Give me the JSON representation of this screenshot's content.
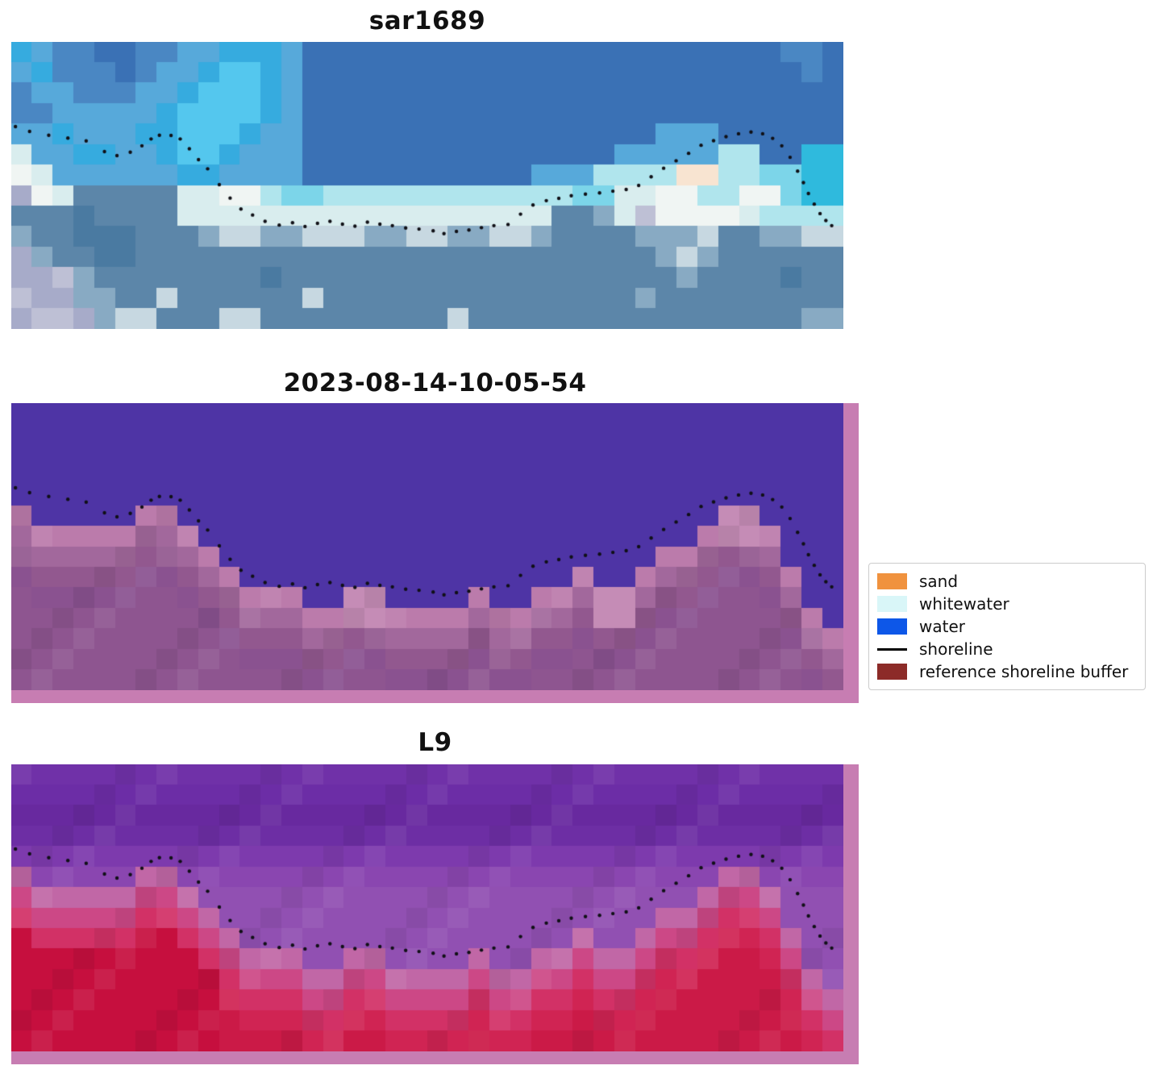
{
  "legend": {
    "items": [
      {
        "label": "sand",
        "color": "#f0923e",
        "type": "patch"
      },
      {
        "label": "whitewater",
        "color": "#d9f6f8",
        "type": "patch"
      },
      {
        "label": "water",
        "color": "#0d57e8",
        "type": "patch"
      },
      {
        "label": "shoreline",
        "color": "#000000",
        "type": "line"
      },
      {
        "label": "reference shoreline buffer",
        "color": "#8c2b28",
        "type": "patch"
      }
    ]
  },
  "chart_data": {
    "type": "heatmap",
    "description": "Three stacked satellite image panels (SAR scene, classified scene with reference shoreline buffer overlay, Landsat 9 scene) sharing one detected dotted shoreline; legend at right",
    "grid_cols": 40,
    "grid_rows": 14,
    "shoreline_color": "#101016",
    "shoreline_dots": [
      [
        0.005,
        0.295
      ],
      [
        0.022,
        0.312
      ],
      [
        0.045,
        0.325
      ],
      [
        0.068,
        0.335
      ],
      [
        0.09,
        0.345
      ],
      [
        0.112,
        0.382
      ],
      [
        0.127,
        0.396
      ],
      [
        0.143,
        0.384
      ],
      [
        0.157,
        0.362
      ],
      [
        0.168,
        0.338
      ],
      [
        0.178,
        0.325
      ],
      [
        0.192,
        0.326
      ],
      [
        0.203,
        0.338
      ],
      [
        0.214,
        0.372
      ],
      [
        0.225,
        0.41
      ],
      [
        0.236,
        0.442
      ],
      [
        0.25,
        0.497
      ],
      [
        0.263,
        0.544
      ],
      [
        0.276,
        0.582
      ],
      [
        0.29,
        0.603
      ],
      [
        0.305,
        0.625
      ],
      [
        0.322,
        0.638
      ],
      [
        0.338,
        0.63
      ],
      [
        0.353,
        0.643
      ],
      [
        0.368,
        0.632
      ],
      [
        0.383,
        0.625
      ],
      [
        0.398,
        0.635
      ],
      [
        0.413,
        0.642
      ],
      [
        0.428,
        0.628
      ],
      [
        0.443,
        0.635
      ],
      [
        0.458,
        0.64
      ],
      [
        0.474,
        0.648
      ],
      [
        0.49,
        0.652
      ],
      [
        0.507,
        0.658
      ],
      [
        0.52,
        0.668
      ],
      [
        0.535,
        0.66
      ],
      [
        0.55,
        0.655
      ],
      [
        0.565,
        0.647
      ],
      [
        0.58,
        0.64
      ],
      [
        0.597,
        0.636
      ],
      [
        0.612,
        0.6
      ],
      [
        0.627,
        0.568
      ],
      [
        0.643,
        0.553
      ],
      [
        0.658,
        0.545
      ],
      [
        0.673,
        0.536
      ],
      [
        0.69,
        0.53
      ],
      [
        0.707,
        0.526
      ],
      [
        0.723,
        0.52
      ],
      [
        0.739,
        0.514
      ],
      [
        0.754,
        0.5
      ],
      [
        0.769,
        0.47
      ],
      [
        0.784,
        0.44
      ],
      [
        0.799,
        0.414
      ],
      [
        0.814,
        0.388
      ],
      [
        0.829,
        0.36
      ],
      [
        0.844,
        0.344
      ],
      [
        0.859,
        0.33
      ],
      [
        0.874,
        0.32
      ],
      [
        0.889,
        0.314
      ],
      [
        0.903,
        0.32
      ],
      [
        0.915,
        0.336
      ],
      [
        0.926,
        0.362
      ],
      [
        0.936,
        0.402
      ],
      [
        0.945,
        0.45
      ],
      [
        0.952,
        0.49
      ],
      [
        0.958,
        0.528
      ],
      [
        0.965,
        0.565
      ],
      [
        0.972,
        0.598
      ],
      [
        0.979,
        0.622
      ],
      [
        0.986,
        0.64
      ]
    ],
    "panels": [
      {
        "title": "sar1689",
        "palette": {
          "B": "#3a71b5",
          "C": "#4a87c3",
          "D": "#57a9da",
          "E": "#36abdf",
          "F": "#54c7ee",
          "G": "#7cd5e9",
          "H": "#b0e5ed",
          "I": "#d9edee",
          "J": "#f0f5f3",
          "K": "#5c86a9",
          "L": "#4a7aa1",
          "N": "#a7abc9",
          "O": "#bec0d5",
          "P": "#f8e4d1",
          "Q": "#88aac3",
          "R": "#2fbadd",
          "S": "#c7d8e1"
        },
        "rows": [
          "EDCCBBCCDDEEEDBBBBBBBBBBBBBBBBBBBBBBBCCB",
          "DECCCBCDDEFFEDBBBBBBBBBBBBBBBBBBBBBBBBCB",
          "CDDCCCDDEFFFEDBBBBBBBBBBBBBBBBBBBBBBBBBB",
          "CCDDDDDEFFFFEDBBBBBBBBBBBBBBBBBBBBBBBBBB",
          "DDEDDDEEFFFEDDBBBBBBBBBBBBBBBBBDDDBBBBBB",
          "IDDEEDDEFFEDDDBBBBBBBBBBBBBBBDDDDDHHBBRR",
          "JIDDDDDDEEDDDDBBBBBBBBBBBDDDHHHHPPHHGGRR",
          "NJIKKKKKIIJJHGGHHHHHHHHHHHHGGIIJJHHJJGRR",
          "KKKLKKKKIIIIIIIIIIIIIIIIIIKKQIOJJJJIHHHH",
          "QKKLLLKKKQSSQQSSSQQSSQQSSQKKKKQQQSKKQQSS",
          "NQKKLLKKKKKKKKKKKKKKKKKKKKKKKKKQSQKKKKKK",
          "NNOQKKKKKKKKLKKKKKKKKKKKKKKKKKKKQKKKKLKK",
          "ONNQQKKSKKKKKKSKKKKKKKKKKKKKKKQKKKKKKKKK",
          "NOONQSSKKKSSKKKKKKKKKSKKKKKKKKKKKKKKKKQQ"
        ]
      },
      {
        "title": "2023-08-14-10-05-54",
        "frame_color": "#c77db2",
        "water_color": "#4e34a5",
        "land_start": [
          5,
          6,
          6,
          6,
          6,
          6,
          5,
          5,
          6,
          7,
          8,
          9,
          9,
          9,
          10,
          10,
          9,
          9,
          10,
          10,
          10,
          10,
          9,
          10,
          10,
          9,
          9,
          8,
          9,
          9,
          8,
          7,
          7,
          6,
          5,
          5,
          6,
          8,
          10,
          11
        ],
        "land_shades": [
          "#bb7bab",
          "#a2689c",
          "#92588f",
          "#8a5290",
          "#8e5590"
        ],
        "highlight_cols": [
          16,
          17,
          28,
          29,
          34,
          35
        ],
        "highlight_color": "#c58cb6"
      },
      {
        "title": "L9",
        "frame_color": "#c77db2",
        "water_rows": [
          "#7031a8",
          "#6c2da6",
          "#68299f",
          "#6d2ea4",
          "#7d3aad",
          "#8a46b0",
          "#9150b2"
        ],
        "water_texture": true,
        "land_start": [
          5,
          6,
          6,
          6,
          6,
          6,
          5,
          5,
          6,
          7,
          8,
          9,
          9,
          9,
          10,
          10,
          9,
          9,
          10,
          10,
          10,
          10,
          9,
          10,
          10,
          9,
          9,
          8,
          9,
          9,
          8,
          7,
          7,
          6,
          5,
          5,
          6,
          8,
          10,
          11
        ],
        "land_shades": [
          "#c167a6",
          "#cc4886",
          "#d23166",
          "#d02453",
          "#cb1a47"
        ],
        "deep_color": "#c60f3e"
      }
    ]
  }
}
